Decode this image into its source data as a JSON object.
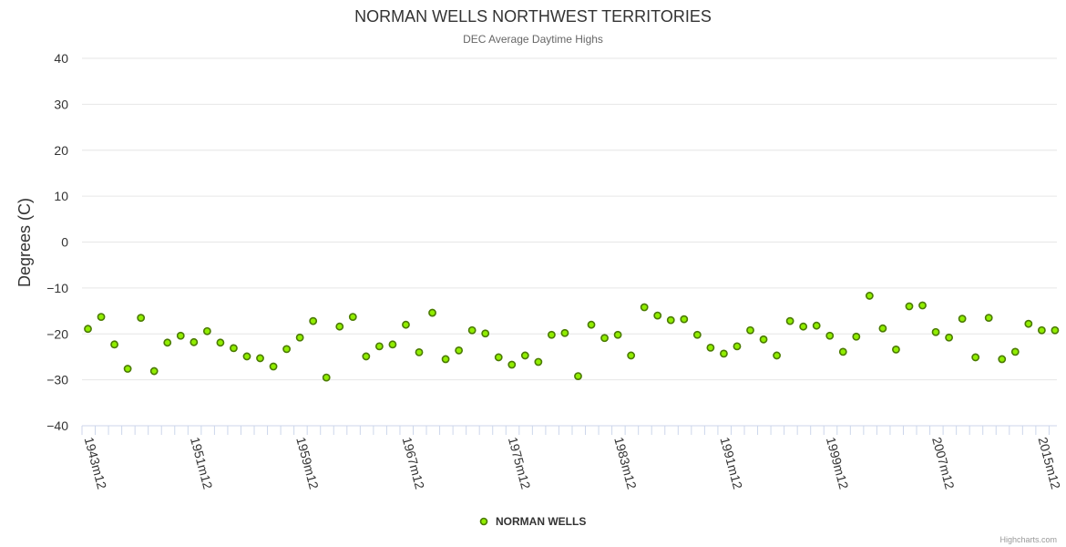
{
  "credits": "Highcharts.com",
  "colors": {
    "series": "#90ed00",
    "series_outline": "#4a7a00",
    "grid": "#e6e6e6",
    "axis": "#ccd6eb"
  },
  "chart_data": {
    "type": "scatter",
    "title": "NORMAN WELLS NORTHWEST TERRITORIES",
    "subtitle": "DEC Average Daytime Highs",
    "xlabel": "",
    "ylabel": "Degrees (C)",
    "ylim": [
      -40,
      40
    ],
    "yticks": [
      "40",
      "30",
      "20",
      "10",
      "0",
      "−10",
      "−20",
      "−30",
      "−40"
    ],
    "ytick_values": [
      40,
      30,
      20,
      10,
      0,
      -10,
      -20,
      -30,
      -40
    ],
    "xticks": [
      "1943m12",
      "1951m12",
      "1959m12",
      "1967m12",
      "1975m12",
      "1983m12",
      "1991m12",
      "1999m12",
      "2007m12",
      "2015m12"
    ],
    "xtick_years": [
      1943,
      1951,
      1959,
      1967,
      1975,
      1983,
      1991,
      1999,
      2007,
      2015
    ],
    "xlim": [
      1943,
      2016
    ],
    "series": [
      {
        "name": "NORMAN WELLS",
        "x": [
          1943,
          1944,
          1945,
          1946,
          1947,
          1948,
          1949,
          1950,
          1951,
          1952,
          1953,
          1954,
          1955,
          1956,
          1957,
          1958,
          1959,
          1960,
          1961,
          1962,
          1963,
          1964,
          1965,
          1966,
          1967,
          1968,
          1969,
          1970,
          1971,
          1972,
          1973,
          1974,
          1975,
          1976,
          1977,
          1978,
          1979,
          1980,
          1981,
          1982,
          1983,
          1984,
          1985,
          1986,
          1987,
          1988,
          1989,
          1990,
          1991,
          1992,
          1993,
          1994,
          1995,
          1996,
          1997,
          1998,
          1999,
          2000,
          2001,
          2002,
          2003,
          2004,
          2005,
          2006,
          2007,
          2008,
          2009,
          2010,
          2011,
          2012,
          2013,
          2014,
          2015,
          2016
        ],
        "y": [
          -18.9,
          -16.3,
          -22.3,
          -27.6,
          -16.5,
          -28.1,
          -21.9,
          -20.4,
          -21.8,
          -19.4,
          -21.9,
          -23.1,
          -24.9,
          -25.3,
          -27.1,
          -23.3,
          -20.8,
          -17.2,
          -29.5,
          -18.4,
          -16.3,
          -24.9,
          -22.7,
          -22.3,
          -18.0,
          -24.0,
          -15.4,
          -25.5,
          -23.6,
          -19.2,
          -19.9,
          -25.1,
          -26.7,
          -24.7,
          -26.1,
          -20.2,
          -19.8,
          -29.2,
          -18.0,
          -20.9,
          -20.2,
          -24.7,
          -14.2,
          -16.0,
          -17.0,
          -16.8,
          -20.2,
          -23.0,
          -24.3,
          -22.7,
          -19.2,
          -21.2,
          -24.7,
          -17.2,
          -18.4,
          -18.2,
          -20.4,
          -23.9,
          -20.6,
          -11.7,
          -18.8,
          -23.4,
          -14.0,
          -13.8,
          -19.6,
          -20.8,
          -16.7,
          -25.1,
          -16.5,
          -25.5,
          -23.9,
          -17.8,
          -19.2,
          -19.2
        ]
      }
    ]
  }
}
